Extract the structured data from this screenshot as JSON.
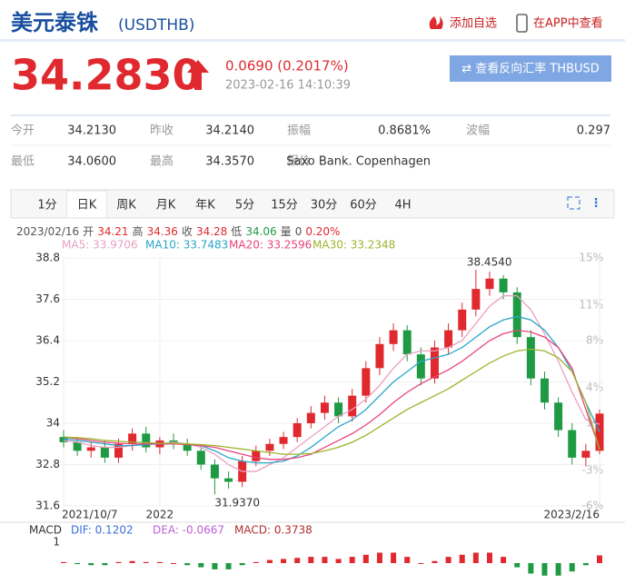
{
  "header": {
    "title": "美元泰铢",
    "code": "(USDTHB)",
    "add": "添加自选",
    "app": "在APP中查看"
  },
  "quote": {
    "price": "34.2830",
    "change": "0.0690 (0.2017%)",
    "time": "2023-02-16 14:10:39",
    "reverse": "⇄ 查看反向汇率 THBUSD"
  },
  "stats": {
    "rows": [
      [
        {
          "label": "今开",
          "value": "34.2130"
        },
        {
          "label": "昨收",
          "value": "34.2140"
        },
        {
          "label": "振幅",
          "value": "0.8681%"
        },
        {
          "label": "波幅",
          "value": "0.297"
        }
      ],
      [
        {
          "label": "最低",
          "value": "34.0600"
        },
        {
          "label": "最高",
          "value": "34.3570"
        },
        {
          "label": "报价",
          "value": "Saxo Bank. Copenhagen"
        }
      ]
    ]
  },
  "tabs": [
    "1分",
    "日K",
    "周K",
    "月K",
    "年K",
    "5分",
    "15分",
    "30分",
    "60分",
    "4H"
  ],
  "active_tab": 1,
  "info": {
    "date": "2023/02/16",
    "fields": [
      {
        "label": "开",
        "value": "34.21",
        "color": "#e0292e"
      },
      {
        "label": "高",
        "value": "34.36",
        "color": "#e0292e"
      },
      {
        "label": "收",
        "value": "34.28",
        "color": "#e0292e"
      },
      {
        "label": "低",
        "value": "34.06",
        "color": "#1f9a44"
      },
      {
        "label": "量",
        "value": "0",
        "color": "#555"
      }
    ],
    "change": "0.20%",
    "change_color": "#e0292e"
  },
  "chart_data": {
    "type": "candlestick",
    "up_color": "#e0292e",
    "down_color": "#1f9a44",
    "open": [
      33.6,
      33.45,
      33.2,
      33.3,
      33.0,
      33.4,
      33.7,
      33.3,
      33.5,
      33.4,
      33.2,
      32.8,
      32.4,
      32.3,
      32.9,
      33.2,
      33.4,
      33.6,
      34.0,
      34.3,
      34.6,
      34.2,
      34.8,
      35.6,
      36.3,
      36.7,
      36.0,
      35.3,
      36.2,
      36.7,
      37.3,
      37.9,
      38.2,
      37.8,
      36.5,
      35.3,
      34.6,
      33.8,
      33.0,
      33.2
    ],
    "high": [
      33.8,
      33.6,
      33.45,
      33.5,
      33.55,
      33.85,
      33.9,
      33.6,
      33.7,
      33.55,
      33.35,
      32.95,
      32.6,
      33.05,
      33.35,
      33.55,
      33.75,
      34.15,
      34.5,
      34.8,
      34.75,
      35.0,
      35.8,
      36.5,
      36.9,
      36.85,
      36.2,
      36.4,
      36.9,
      37.5,
      38.454,
      38.4,
      38.3,
      37.95,
      36.7,
      35.5,
      34.75,
      34.0,
      33.4,
      34.4
    ],
    "low": [
      33.3,
      33.05,
      33.0,
      32.85,
      32.85,
      33.2,
      33.15,
      33.1,
      33.25,
      33.05,
      32.65,
      31.937,
      32.1,
      32.15,
      32.75,
      33.05,
      33.25,
      33.45,
      33.85,
      34.1,
      34.0,
      34.05,
      34.6,
      35.4,
      36.1,
      35.8,
      35.1,
      35.15,
      36.0,
      36.5,
      37.1,
      37.7,
      37.6,
      36.3,
      35.1,
      34.4,
      33.6,
      32.8,
      32.75,
      33.1
    ],
    "close": [
      33.45,
      33.2,
      33.3,
      33.0,
      33.4,
      33.7,
      33.3,
      33.5,
      33.4,
      33.2,
      32.8,
      32.4,
      32.3,
      32.9,
      33.2,
      33.4,
      33.6,
      34.0,
      34.3,
      34.6,
      34.2,
      34.8,
      35.6,
      36.3,
      36.7,
      36.0,
      35.3,
      36.2,
      36.7,
      37.3,
      37.9,
      38.2,
      37.8,
      36.5,
      35.3,
      34.6,
      33.8,
      33.0,
      33.2,
      34.28
    ],
    "series": [
      {
        "name": "MA5: 33.9706",
        "color": "#e8a0c0",
        "values": [
          33.5,
          33.45,
          33.35,
          33.3,
          33.3,
          33.35,
          33.4,
          33.4,
          33.45,
          33.4,
          33.3,
          33.1,
          32.8,
          32.6,
          32.6,
          32.8,
          33.0,
          33.3,
          33.6,
          33.9,
          34.2,
          34.4,
          34.7,
          35.1,
          35.6,
          36.0,
          36.1,
          36.1,
          36.2,
          36.4,
          36.9,
          37.4,
          37.7,
          37.7,
          37.3,
          36.6,
          35.8,
          34.9,
          34.1,
          33.97
        ]
      },
      {
        "name": "MA10: 33.7483",
        "color": "#2aa5c9",
        "values": [
          33.55,
          33.5,
          33.45,
          33.4,
          33.35,
          33.35,
          33.38,
          33.4,
          33.4,
          33.4,
          33.35,
          33.2,
          33.0,
          32.9,
          32.85,
          32.85,
          32.9,
          33.05,
          33.3,
          33.6,
          33.9,
          34.1,
          34.4,
          34.8,
          35.2,
          35.5,
          35.8,
          35.9,
          36.0,
          36.2,
          36.5,
          36.8,
          37.0,
          37.1,
          37.0,
          36.7,
          36.2,
          35.5,
          34.6,
          33.75
        ]
      },
      {
        "name": "MA20: 33.2596",
        "color": "#e8457a",
        "values": [
          33.6,
          33.55,
          33.5,
          33.45,
          33.42,
          33.4,
          33.4,
          33.4,
          33.4,
          33.38,
          33.35,
          33.3,
          33.2,
          33.1,
          33.0,
          32.95,
          32.95,
          33.0,
          33.1,
          33.3,
          33.5,
          33.7,
          33.95,
          34.25,
          34.6,
          34.9,
          35.15,
          35.35,
          35.55,
          35.8,
          36.1,
          36.4,
          36.6,
          36.7,
          36.65,
          36.5,
          36.2,
          35.6,
          34.4,
          33.26
        ]
      },
      {
        "name": "MA30: 33.2348",
        "color": "#9bb52c",
        "values": [
          33.6,
          33.58,
          33.55,
          33.5,
          33.48,
          33.45,
          33.44,
          33.42,
          33.42,
          33.4,
          33.38,
          33.35,
          33.3,
          33.25,
          33.2,
          33.15,
          33.1,
          33.1,
          33.12,
          33.2,
          33.3,
          33.45,
          33.65,
          33.9,
          34.15,
          34.4,
          34.6,
          34.8,
          35.0,
          35.25,
          35.5,
          35.75,
          35.95,
          36.1,
          36.15,
          36.1,
          35.9,
          35.5,
          34.6,
          33.23
        ]
      }
    ],
    "ylim": [
      31.6,
      38.8
    ],
    "yticks": [
      38.8,
      37.6,
      36.4,
      35.2,
      34,
      32.8,
      31.6
    ],
    "y2lim": [
      -6,
      15
    ],
    "y2ticks": [
      {
        "value": 15,
        "label": "15%"
      },
      {
        "value": 11,
        "label": "11%"
      },
      {
        "value": 8,
        "label": "8%"
      },
      {
        "value": 4,
        "label": "4%"
      },
      {
        "value": 1,
        "label": "1%"
      },
      {
        "value": -3,
        "label": "-3%"
      },
      {
        "value": -6,
        "label": "-6%"
      }
    ],
    "x_labels": [
      {
        "index": 0,
        "label": "2021/10/7"
      },
      {
        "index": 7,
        "label": "2022"
      },
      {
        "index": 39,
        "label": "2023/2/16"
      }
    ],
    "annotations": [
      {
        "index": 30,
        "label": "38.4540"
      },
      {
        "index": 11,
        "label": "31.9370"
      }
    ],
    "macd": {
      "title": "MACD",
      "lines": [
        {
          "name": "DIF: 0.1202",
          "color": "#3b6fd8"
        },
        {
          "name": "DEA: -0.0667",
          "color": "#c05fd6"
        },
        {
          "name": "MACD: 0.3738",
          "color": "#b03030"
        }
      ],
      "ylim": [
        -1,
        1
      ],
      "yticks": [
        1
      ],
      "values": [
        0.05,
        -0.05,
        -0.1,
        -0.1,
        0.05,
        0.1,
        0.05,
        0.05,
        0,
        -0.1,
        -0.2,
        -0.3,
        -0.3,
        -0.1,
        0.05,
        0.15,
        0.2,
        0.25,
        0.3,
        0.3,
        0.2,
        0.3,
        0.4,
        0.5,
        0.5,
        0.3,
        0,
        0.1,
        0.3,
        0.4,
        0.5,
        0.5,
        0.3,
        -0.2,
        -0.5,
        -0.6,
        -0.6,
        -0.4,
        -0.1,
        0.37
      ]
    }
  }
}
